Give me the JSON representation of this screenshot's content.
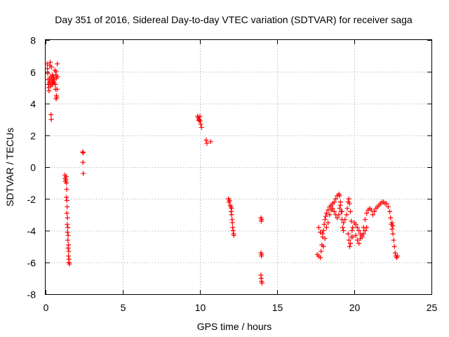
{
  "chart_data": {
    "type": "scatter",
    "title": "Day 351 of 2016, Sidereal Day-to-day VTEC variation (SDTVAR) for receiver saga",
    "xlabel": "GPS time / hours",
    "ylabel": "SDTVAR / TECUs",
    "xlim": [
      0,
      25
    ],
    "ylim": [
      -8,
      8
    ],
    "xticks": [
      "0",
      "5",
      "10",
      "15",
      "20",
      "25"
    ],
    "yticks": [
      "-8",
      "-6",
      "-4",
      "-2",
      "0",
      "2",
      "4",
      "6",
      "8"
    ],
    "grid": true,
    "marker": "+",
    "color": "#ff0000",
    "series": [
      {
        "name": "saga",
        "points": [
          [
            0.1,
            6.5
          ],
          [
            0.12,
            6.2
          ],
          [
            0.14,
            5.9
          ],
          [
            0.16,
            5.5
          ],
          [
            0.18,
            5.2
          ],
          [
            0.2,
            5.0
          ],
          [
            0.22,
            4.8
          ],
          [
            0.24,
            5.3
          ],
          [
            0.26,
            5.6
          ],
          [
            0.28,
            6.4
          ],
          [
            0.3,
            6.6
          ],
          [
            0.32,
            5.4
          ],
          [
            0.34,
            5.1
          ],
          [
            0.36,
            5.7
          ],
          [
            0.38,
            6.3
          ],
          [
            0.4,
            5.5
          ],
          [
            0.42,
            5.2
          ],
          [
            0.44,
            5.8
          ],
          [
            0.46,
            5.3
          ],
          [
            0.48,
            5.6
          ],
          [
            0.5,
            5.4
          ],
          [
            0.52,
            5.7
          ],
          [
            0.55,
            5.3
          ],
          [
            0.58,
            5.5
          ],
          [
            0.6,
            6.1
          ],
          [
            0.62,
            5.2
          ],
          [
            0.64,
            4.9
          ],
          [
            0.66,
            5.8
          ],
          [
            0.68,
            6.0
          ],
          [
            0.7,
            5.6
          ],
          [
            0.72,
            4.4
          ],
          [
            0.74,
            4.9
          ],
          [
            0.76,
            6.5
          ],
          [
            0.78,
            5.7
          ],
          [
            0.35,
            3.3
          ],
          [
            0.37,
            3.0
          ],
          [
            0.68,
            4.3
          ],
          [
            0.7,
            4.5
          ],
          [
            1.25,
            -0.5
          ],
          [
            1.27,
            -0.7
          ],
          [
            1.29,
            -0.9
          ],
          [
            1.31,
            -0.8
          ],
          [
            1.33,
            -0.6
          ],
          [
            1.35,
            -1.0
          ],
          [
            1.37,
            -1.4
          ],
          [
            1.35,
            -1.9
          ],
          [
            1.38,
            -2.1
          ],
          [
            1.4,
            -2.5
          ],
          [
            1.38,
            -2.9
          ],
          [
            1.42,
            -3.2
          ],
          [
            1.4,
            -3.6
          ],
          [
            1.44,
            -3.8
          ],
          [
            1.42,
            -4.1
          ],
          [
            1.46,
            -4.3
          ],
          [
            1.44,
            -4.6
          ],
          [
            1.48,
            -4.9
          ],
          [
            1.46,
            -5.1
          ],
          [
            1.5,
            -5.3
          ],
          [
            1.48,
            -5.6
          ],
          [
            1.52,
            -5.8
          ],
          [
            1.5,
            -6.0
          ],
          [
            1.55,
            -6.1
          ],
          [
            2.4,
            0.95
          ],
          [
            2.44,
            0.9
          ],
          [
            2.42,
            0.3
          ],
          [
            2.44,
            -0.4
          ],
          [
            9.85,
            3.2
          ],
          [
            9.9,
            3.1
          ],
          [
            9.95,
            3.0
          ],
          [
            10.0,
            2.9
          ],
          [
            10.05,
            2.7
          ],
          [
            10.0,
            3.2
          ],
          [
            10.1,
            2.5
          ],
          [
            9.92,
            2.95
          ],
          [
            10.4,
            1.7
          ],
          [
            10.45,
            1.5
          ],
          [
            10.7,
            1.6
          ],
          [
            11.85,
            -2.0
          ],
          [
            11.88,
            -2.2
          ],
          [
            11.92,
            -2.1
          ],
          [
            11.96,
            -2.4
          ],
          [
            12.0,
            -2.5
          ],
          [
            12.02,
            -2.8
          ],
          [
            12.05,
            -3.0
          ],
          [
            12.08,
            -3.3
          ],
          [
            12.1,
            -3.5
          ],
          [
            12.12,
            -3.8
          ],
          [
            12.15,
            -4.0
          ],
          [
            12.18,
            -4.2
          ],
          [
            12.2,
            -4.3
          ],
          [
            12.05,
            -2.6
          ],
          [
            13.95,
            -3.2
          ],
          [
            13.97,
            -3.4
          ],
          [
            14.0,
            -3.3
          ],
          [
            13.95,
            -5.4
          ],
          [
            13.98,
            -5.6
          ],
          [
            14.0,
            -5.5
          ],
          [
            13.95,
            -6.8
          ],
          [
            13.97,
            -7.0
          ],
          [
            14.0,
            -7.2
          ],
          [
            14.02,
            -7.3
          ],
          [
            17.6,
            -5.5
          ],
          [
            17.7,
            -5.6
          ],
          [
            17.8,
            -5.7
          ],
          [
            17.85,
            -5.3
          ],
          [
            17.9,
            -4.9
          ],
          [
            17.95,
            -4.4
          ],
          [
            18.0,
            -4.0
          ],
          [
            17.7,
            -3.8
          ],
          [
            17.8,
            -4.1
          ],
          [
            17.95,
            -4.2
          ],
          [
            18.05,
            -3.6
          ],
          [
            18.1,
            -3.3
          ],
          [
            18.15,
            -3.1
          ],
          [
            18.2,
            -2.9
          ],
          [
            18.3,
            -2.7
          ],
          [
            18.4,
            -2.5
          ],
          [
            18.5,
            -2.4
          ],
          [
            18.6,
            -2.3
          ],
          [
            18.7,
            -2.2
          ],
          [
            18.8,
            -2.0
          ],
          [
            18.9,
            -1.8
          ],
          [
            19.0,
            -1.7
          ],
          [
            19.05,
            -1.8
          ],
          [
            19.1,
            -2.2
          ],
          [
            19.15,
            -2.8
          ],
          [
            19.2,
            -3.3
          ],
          [
            19.25,
            -3.8
          ],
          [
            19.3,
            -4.0
          ],
          [
            18.0,
            -5.0
          ],
          [
            18.1,
            -4.5
          ],
          [
            18.2,
            -3.8
          ],
          [
            18.3,
            -3.5
          ],
          [
            18.4,
            -3.0
          ],
          [
            18.5,
            -2.7
          ],
          [
            18.6,
            -2.6
          ],
          [
            18.7,
            -2.8
          ],
          [
            18.8,
            -3.0
          ],
          [
            18.9,
            -3.2
          ],
          [
            19.0,
            -3.0
          ],
          [
            19.05,
            -2.6
          ],
          [
            19.1,
            -2.4
          ],
          [
            19.2,
            -2.8
          ],
          [
            19.3,
            -3.5
          ],
          [
            19.4,
            -3.3
          ],
          [
            19.5,
            -3.0
          ],
          [
            19.55,
            -2.6
          ],
          [
            19.6,
            -2.2
          ],
          [
            19.65,
            -2.0
          ],
          [
            19.7,
            -2.3
          ],
          [
            19.75,
            -2.8
          ],
          [
            19.8,
            -3.4
          ],
          [
            19.85,
            -4.0
          ],
          [
            19.9,
            -4.4
          ],
          [
            19.6,
            -4.2
          ],
          [
            19.65,
            -4.6
          ],
          [
            19.7,
            -5.0
          ],
          [
            19.75,
            -4.8
          ],
          [
            19.8,
            -4.4
          ],
          [
            19.9,
            -3.8
          ],
          [
            20.0,
            -3.5
          ],
          [
            20.1,
            -3.6
          ],
          [
            20.2,
            -3.8
          ],
          [
            20.3,
            -4.0
          ],
          [
            20.4,
            -4.2
          ],
          [
            20.5,
            -4.4
          ],
          [
            20.6,
            -4.2
          ],
          [
            20.7,
            -4.0
          ],
          [
            20.8,
            -3.8
          ],
          [
            20.1,
            -4.3
          ],
          [
            20.2,
            -4.6
          ],
          [
            20.3,
            -4.8
          ],
          [
            20.4,
            -4.5
          ],
          [
            20.5,
            -4.3
          ],
          [
            20.6,
            -3.8
          ],
          [
            20.7,
            -3.3
          ],
          [
            20.8,
            -2.9
          ],
          [
            20.9,
            -2.7
          ],
          [
            21.0,
            -2.6
          ],
          [
            21.1,
            -2.7
          ],
          [
            21.2,
            -3.0
          ],
          [
            21.3,
            -2.8
          ],
          [
            21.4,
            -2.6
          ],
          [
            21.5,
            -2.5
          ],
          [
            21.6,
            -2.4
          ],
          [
            21.7,
            -2.3
          ],
          [
            21.8,
            -2.2
          ],
          [
            21.9,
            -2.2
          ],
          [
            22.0,
            -2.3
          ],
          [
            22.1,
            -2.3
          ],
          [
            22.2,
            -2.5
          ],
          [
            22.3,
            -2.8
          ],
          [
            22.35,
            -3.2
          ],
          [
            22.4,
            -3.6
          ],
          [
            22.45,
            -3.9
          ],
          [
            22.5,
            -4.2
          ],
          [
            22.55,
            -4.6
          ],
          [
            22.6,
            -5.0
          ],
          [
            22.65,
            -5.4
          ],
          [
            22.7,
            -5.6
          ],
          [
            22.75,
            -5.7
          ],
          [
            22.8,
            -5.6
          ],
          [
            22.45,
            -3.5
          ],
          [
            22.5,
            -3.7
          ]
        ]
      }
    ]
  }
}
